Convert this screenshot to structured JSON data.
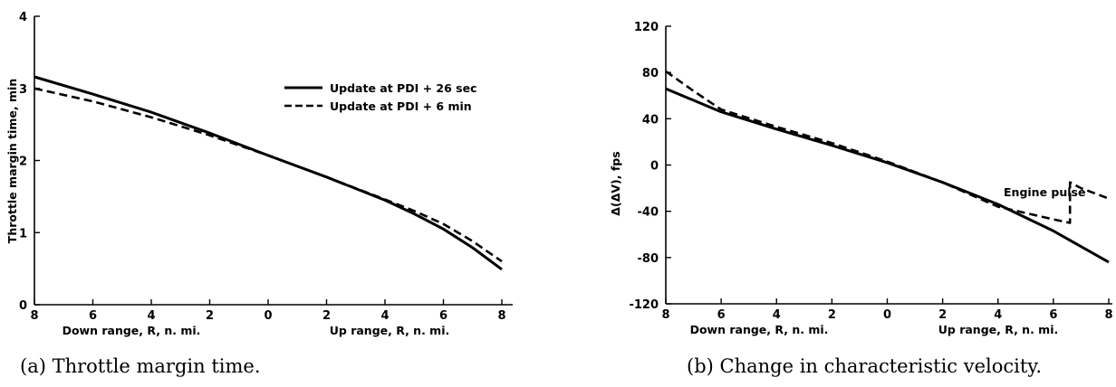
{
  "chart_data": [
    {
      "type": "line",
      "caption": "(a)  Throttle margin time.",
      "ylabel": "Throttle margin time, min",
      "xlabel_left": "Down range, R, n. mi.",
      "xlabel_right": "Up range, R, n. mi.",
      "xlim": [
        -8,
        8
      ],
      "ylim": [
        0,
        4
      ],
      "x_ticks": [
        -8,
        -6,
        -4,
        -2,
        0,
        2,
        4,
        6,
        8
      ],
      "x_tick_labels": [
        "8",
        "6",
        "4",
        "2",
        "0",
        "2",
        "4",
        "6",
        "8"
      ],
      "y_ticks": [
        0,
        1,
        2,
        3,
        4
      ],
      "y_tick_labels": [
        "0",
        "1",
        "2",
        "3",
        "4"
      ],
      "legend_position": "top-right",
      "series": [
        {
          "name": "Update at PDI + 26 sec",
          "style": "solid",
          "x": [
            -8,
            -6,
            -4,
            -2,
            0,
            2,
            4,
            5,
            6,
            7,
            8
          ],
          "y": [
            3.16,
            2.92,
            2.67,
            2.38,
            2.07,
            1.77,
            1.45,
            1.26,
            1.05,
            0.79,
            0.49
          ]
        },
        {
          "name": "Update at PDI + 6 min",
          "style": "dashed",
          "x": [
            -8,
            -6,
            -4,
            -2,
            0,
            2,
            4,
            5,
            6,
            7,
            8
          ],
          "y": [
            3.0,
            2.82,
            2.6,
            2.35,
            2.07,
            1.77,
            1.46,
            1.3,
            1.12,
            0.88,
            0.6
          ]
        }
      ]
    },
    {
      "type": "line",
      "caption": "(b)  Change in characteristic velocity.",
      "ylabel": "Δ(ΔV), fps",
      "xlabel_left": "Down range, R, n. mi.",
      "xlabel_right": "Up range, R, n. mi.",
      "xlim": [
        -8,
        8
      ],
      "ylim": [
        -120,
        120
      ],
      "x_ticks": [
        -8,
        -6,
        -4,
        -2,
        0,
        2,
        4,
        6,
        8
      ],
      "x_tick_labels": [
        "8",
        "6",
        "4",
        "2",
        "0",
        "2",
        "4",
        "6",
        "8"
      ],
      "y_ticks": [
        -120,
        -80,
        -40,
        0,
        40,
        80,
        120
      ],
      "y_tick_labels": [
        "-120",
        "-80",
        "-40",
        "0",
        "40",
        "80",
        "120"
      ],
      "annotation": "Engine pulse",
      "series": [
        {
          "name": "Update at PDI + 26 sec",
          "style": "solid",
          "x": [
            -8,
            -6,
            -4,
            -2,
            0,
            2,
            4,
            6,
            8
          ],
          "y": [
            66,
            46,
            31,
            17,
            2,
            -15,
            -34,
            -57,
            -84
          ]
        },
        {
          "name": "Update at PDI + 6 min",
          "style": "dashed",
          "x": [
            -8,
            -7,
            -6,
            -4,
            -2,
            0,
            2,
            4,
            6,
            6.6,
            6.6,
            7,
            8
          ],
          "y": [
            81,
            64,
            48,
            33,
            19,
            3,
            -15,
            -36,
            -47,
            -50,
            -15,
            -20,
            -29
          ]
        }
      ]
    }
  ]
}
